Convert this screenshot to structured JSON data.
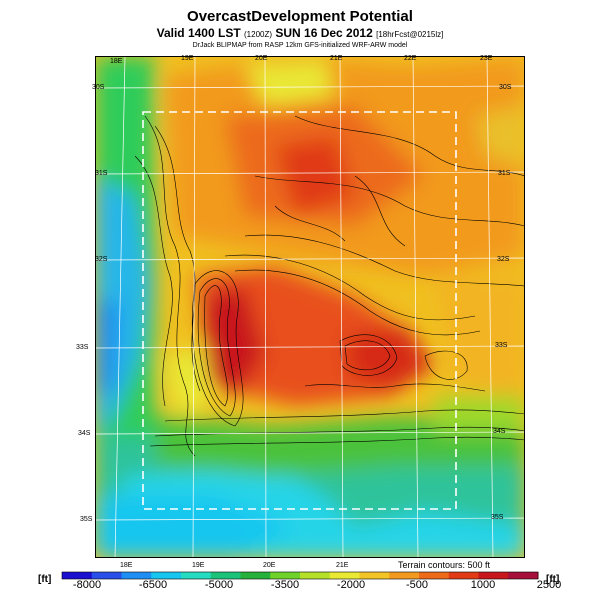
{
  "header": {
    "title": "OvercastDevelopment Potential",
    "subtitle_main": "Valid 1400 LST",
    "subtitle_small1": "(1200Z)",
    "subtitle_main2": "SUN 16 Dec 2012",
    "subtitle_small2": "[18hrFcst@0215lz]",
    "credit": "DrJack BLIPMAP from RASP 12km GFS-initialized WRF-ARW model"
  },
  "map": {
    "lon_labels_top": [
      "18E",
      "19E",
      "20E",
      "21E",
      "22E",
      "23E"
    ],
    "lon_labels_bottom": [
      "18E",
      "19E",
      "20E",
      "21E"
    ],
    "lat_labels_left": [
      "30S",
      "31S",
      "32S",
      "33S",
      "34S",
      "35S"
    ],
    "lat_labels_right": [
      "30S",
      "31S",
      "32S",
      "33S",
      "34S",
      "35S"
    ],
    "contour_note": "Terrain contours: 500 ft"
  },
  "colorbar": {
    "unit_left": "[ft]",
    "unit_right": "[ft]",
    "ticks": [
      "-8000",
      "-6500",
      "-5000",
      "-3500",
      "-2000",
      "-500",
      "1000",
      "2500"
    ],
    "colors": [
      "#1a0fd0",
      "#2a4fe8",
      "#1f8ef2",
      "#17c6ef",
      "#25dcc0",
      "#1dc27a",
      "#25b13a",
      "#6ed22a",
      "#b4e02a",
      "#e9e934",
      "#f2c427",
      "#f29a1f",
      "#ec6a1a",
      "#e03b16",
      "#c8171c",
      "#a50f3a"
    ]
  }
}
